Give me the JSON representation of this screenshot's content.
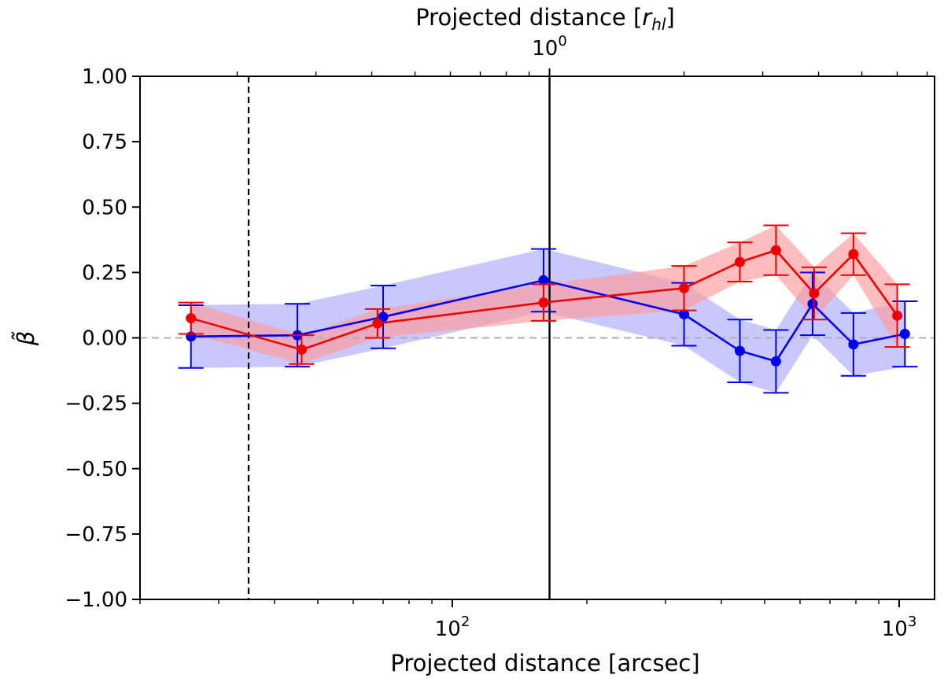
{
  "chart_data": {
    "type": "line",
    "xscale": "log",
    "xlim": [
      20,
      1200
    ],
    "ylim": [
      -1.0,
      1.0
    ],
    "xlabel": "Projected distance [arcsec]",
    "ylabel": "β̃",
    "top_xlabel_prefix": "Projected distance [",
    "top_xlabel_var": "r",
    "top_xlabel_sub": "hl",
    "top_xlabel_suffix": "]",
    "top_tick": {
      "base": "10",
      "exponent": "0",
      "x": 165
    },
    "x_major_ticks": [
      {
        "value": 100,
        "base": "10",
        "exponent": "2"
      },
      {
        "value": 1000,
        "base": "10",
        "exponent": "3"
      }
    ],
    "y_ticks": [
      {
        "value": 1.0,
        "label": "1.00"
      },
      {
        "value": 0.75,
        "label": "0.75"
      },
      {
        "value": 0.5,
        "label": "0.50"
      },
      {
        "value": 0.25,
        "label": "0.25"
      },
      {
        "value": 0.0,
        "label": "0.00"
      },
      {
        "value": -0.25,
        "label": "−0.25"
      },
      {
        "value": -0.5,
        "label": "−0.50"
      },
      {
        "value": -0.75,
        "label": "−0.75"
      },
      {
        "value": -1.0,
        "label": "−1.00"
      }
    ],
    "reference_lines": {
      "horizontal_zero": 0.0,
      "dashed_vertical_x": 35,
      "solid_vertical_x": 165
    },
    "series": [
      {
        "name": "blue",
        "color": "#0000ee",
        "band_color": "#aaaaff",
        "x": [
          26,
          45,
          70,
          160,
          330,
          440,
          530,
          640,
          790,
          1030
        ],
        "y": [
          0.005,
          0.01,
          0.08,
          0.22,
          0.09,
          -0.05,
          -0.09,
          0.13,
          -0.025,
          0.015
        ],
        "err": [
          0.12,
          0.12,
          0.12,
          0.12,
          0.12,
          0.12,
          0.12,
          0.12,
          0.12,
          0.125
        ]
      },
      {
        "name": "red",
        "color": "#ee0000",
        "band_color": "#ff9999",
        "x": [
          26,
          46,
          68,
          160,
          330,
          440,
          530,
          645,
          790,
          990
        ],
        "y": [
          0.075,
          -0.045,
          0.055,
          0.135,
          0.19,
          0.29,
          0.335,
          0.17,
          0.32,
          0.085
        ],
        "err": [
          0.06,
          0.055,
          0.055,
          0.07,
          0.085,
          0.075,
          0.095,
          0.1,
          0.08,
          0.12
        ]
      }
    ]
  }
}
